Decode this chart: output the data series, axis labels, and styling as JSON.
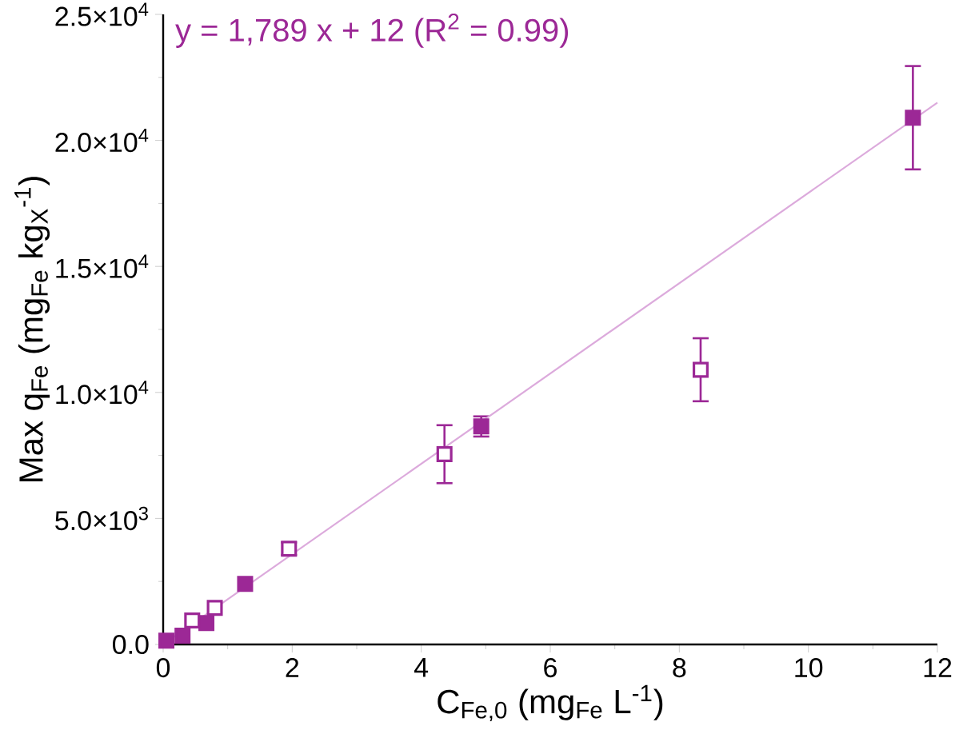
{
  "chart_data": {
    "type": "scatter",
    "xlabel": "C$_{Fe,0}$ (mg$_{Fe}$ L$^{-1}$)",
    "ylabel": "Max q$_{Fe}$ (mg$_{Fe}$ kg$_{X}$$^{-1}$)",
    "annotations": [
      "y = 1,789 x + 12 (R$^{2}$ = 0.99)"
    ],
    "xlim": [
      0,
      12
    ],
    "xticks": [
      0,
      2,
      4,
      6,
      8,
      10,
      12
    ],
    "ylim": [
      0,
      25000
    ],
    "yticks": [
      {
        "value": 0,
        "label": "0.0"
      },
      {
        "value": 5000,
        "label": "5.0×10$^{3}$"
      },
      {
        "value": 10000,
        "label": "1.0×10$^{4}$"
      },
      {
        "value": 15000,
        "label": "1.5×10$^{4}$"
      },
      {
        "value": 20000,
        "label": "2.0×10$^{4}$"
      },
      {
        "value": 25000,
        "label": "2.5×10$^{4}$"
      }
    ],
    "series": [
      {
        "color": "#9c2896",
        "marker": "square",
        "x": [
          0.05,
          0.3,
          0.67,
          1.27,
          4.93,
          11.62
        ],
        "values": [
          150,
          350,
          850,
          2400,
          8650,
          20900
        ],
        "errors": [
          null,
          null,
          null,
          null,
          400,
          2050
        ]
      },
      {
        "color": "#9c2896",
        "marker": "square",
        "x": [
          0.45,
          0.8,
          1.95,
          4.36,
          8.33
        ],
        "values": [
          950,
          1450,
          3800,
          7550,
          10900
        ],
        "errors": [
          null,
          null,
          250,
          1150,
          1250
        ]
      },
      {
        "type": "line",
        "marker": "none",
        "color": "#dcaadc",
        "x": [
          0,
          12
        ],
        "values": [
          0,
          21500
        ]
      }
    ]
  }
}
